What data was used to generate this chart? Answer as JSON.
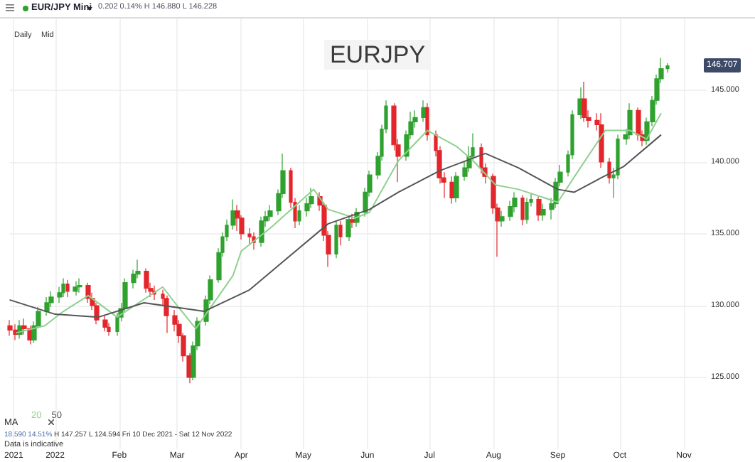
{
  "chart_data": {
    "type": "candlestick",
    "title": "EURJPY",
    "annotations": [
      "EUR/JPY Mini",
      "0.202 0.14% H 146.880 L 146.228",
      "Daily",
      "Mid",
      "18.590 14.51%",
      "H 147.257 L 124.594 Fri 10 Dec 2021 - Sat 12 Nov 2022",
      "Data is indicative",
      "146.707"
    ],
    "xlim": [
      "2021-12-10",
      "2022-11-12"
    ],
    "xticks": [
      {
        "value": "2021-12-12",
        "label": "2021"
      },
      {
        "value": "2022-01-01",
        "label": "2022"
      },
      {
        "value": "2022-02-01",
        "label": "Feb"
      },
      {
        "value": "2022-03-01",
        "label": "Mar"
      },
      {
        "value": "2022-04-01",
        "label": "Apr"
      },
      {
        "value": "2022-05-01",
        "label": "May"
      },
      {
        "value": "2022-06-01",
        "label": "Jun"
      },
      {
        "value": "2022-07-01",
        "label": "Jul"
      },
      {
        "value": "2022-08-01",
        "label": "Aug"
      },
      {
        "value": "2022-09-01",
        "label": "Sep"
      },
      {
        "value": "2022-10-01",
        "label": "Oct"
      },
      {
        "value": "2022-11-01",
        "label": "Nov"
      }
    ],
    "ylim": [
      120,
      150
    ],
    "yticks": [
      {
        "value": 125,
        "label": "125.000"
      },
      {
        "value": 130,
        "label": "130.000"
      },
      {
        "value": 135,
        "label": "135.000"
      },
      {
        "value": 140,
        "label": "140.000"
      },
      {
        "value": 145,
        "label": "145.000"
      }
    ],
    "grid": true,
    "legend": "bottom left",
    "legend_title": "MA",
    "series": [
      {
        "colors": [
          "#e3262b",
          "#e3262b",
          "#2fa12f",
          "#e3262b",
          "#e3262b",
          "#2fa12f",
          "#2fa12f",
          "#2fa12f",
          "#2fa12f",
          "#2fa12f",
          "#2fa12f",
          "#e3262b",
          "#2fa12f",
          "#2fa12f",
          "#e3262b",
          "#e3262b",
          "#e3262b",
          "#e3262b",
          "#e3262b",
          "#2fa12f",
          "#2fa12f",
          "#2fa12f",
          "#2fa12f",
          "#2fa12f",
          "#e3262b",
          "#e3262b",
          "#e3262b",
          "#e3262b",
          "#e3262b",
          "#e3262b",
          "#e3262b",
          "#e3262b",
          "#e3262b",
          "#2fa12f",
          "#2fa12f",
          "#2fa12f",
          "#2fa12f",
          "#2fa12f",
          "#2fa12f",
          "#2fa12f",
          "#2fa12f",
          "#e3262b",
          "#e3262b",
          "#e3262b",
          "#e3262b",
          "#2fa12f",
          "#2fa12f",
          "#2fa12f",
          "#2fa12f",
          "#2fa12f",
          "#e3262b",
          "#e3262b",
          "#2fa12f",
          "#2fa12f",
          "#2fa12f",
          "#e3262b",
          "#e3262b",
          "#e3262b",
          "#2fa12f",
          "#e3262b",
          "#2fa12f",
          "#e3262b",
          "#2fa12f",
          "#2fa12f",
          "#2fa12f",
          "#2fa12f",
          "#2fa12f",
          "#2fa12f",
          "#e3262b",
          "#e3262b",
          "#2fa12f",
          "#2fa12f",
          "#2fa12f",
          "#2fa12f",
          "#e3262b",
          "#e3262b",
          "#e3262b",
          "#e3262b",
          "#e3262b",
          "#2fa12f",
          "#2fa12f",
          "#2fa12f",
          "#2fa12f",
          "#e3262b",
          "#e3262b",
          "#e3262b",
          "#e3262b",
          "#2fa12f",
          "#2fa12f",
          "#2fa12f",
          "#e3262b",
          "#2fa12f",
          "#2fa12f",
          "#e3262b",
          "#2fa12f",
          "#2fa12f",
          "#2fa12f",
          "#2fa12f",
          "#2fa12f",
          "#2fa12f",
          "#2fa12f",
          "#e3262b",
          "#e3262b",
          "#e3262b",
          "#e3262b",
          "#e3262b",
          "#2fa12f",
          "#2fa12f",
          "#2fa12f",
          "#2fa12f",
          "#e3262b",
          "#e3262b",
          "#2fa12f",
          "#2fa12f",
          "#2fa12f",
          "#2fa12f",
          "#2fa12f"
        ],
        "x": [
          "2021-12-10",
          "2021-12-13",
          "2021-12-15",
          "2021-12-17",
          "2021-12-20",
          "2021-12-22",
          "2021-12-24",
          "2021-12-28",
          "2021-12-30",
          "2022-01-03",
          "2022-01-05",
          "2022-01-07",
          "2022-01-11",
          "2022-01-13",
          "2022-01-17",
          "2022-01-19",
          "2022-01-21",
          "2022-01-25",
          "2022-01-27",
          "2022-01-31",
          "2022-02-02",
          "2022-02-04",
          "2022-02-08",
          "2022-02-10",
          "2022-02-14",
          "2022-02-16",
          "2022-02-18",
          "2022-02-22",
          "2022-02-24",
          "2022-02-28",
          "2022-03-02",
          "2022-03-04",
          "2022-03-07",
          "2022-03-09",
          "2022-03-11",
          "2022-03-15",
          "2022-03-17",
          "2022-03-21",
          "2022-03-23",
          "2022-03-25",
          "2022-03-28",
          "2022-03-30",
          "2022-04-01",
          "2022-04-05",
          "2022-04-07",
          "2022-04-11",
          "2022-04-13",
          "2022-04-15",
          "2022-04-19",
          "2022-04-21",
          "2022-04-25",
          "2022-04-27",
          "2022-04-29",
          "2022-05-03",
          "2022-05-05",
          "2022-05-09",
          "2022-05-11",
          "2022-05-13",
          "2022-05-17",
          "2022-05-19",
          "2022-05-23",
          "2022-05-25",
          "2022-05-27",
          "2022-05-31",
          "2022-06-02",
          "2022-06-06",
          "2022-06-08",
          "2022-06-10",
          "2022-06-14",
          "2022-06-16",
          "2022-06-20",
          "2022-06-22",
          "2022-06-24",
          "2022-06-28",
          "2022-06-30",
          "2022-07-04",
          "2022-07-06",
          "2022-07-08",
          "2022-07-12",
          "2022-07-14",
          "2022-07-18",
          "2022-07-20",
          "2022-07-22",
          "2022-07-26",
          "2022-07-28",
          "2022-08-01",
          "2022-08-03",
          "2022-08-05",
          "2022-08-09",
          "2022-08-11",
          "2022-08-15",
          "2022-08-17",
          "2022-08-19",
          "2022-08-23",
          "2022-08-25",
          "2022-08-29",
          "2022-08-31",
          "2022-09-02",
          "2022-09-06",
          "2022-09-08",
          "2022-09-12",
          "2022-09-14",
          "2022-09-16",
          "2022-09-20",
          "2022-09-22",
          "2022-09-26",
          "2022-09-28",
          "2022-09-30",
          "2022-10-04",
          "2022-10-06",
          "2022-10-10",
          "2022-10-12",
          "2022-10-14",
          "2022-10-17",
          "2022-10-19",
          "2022-10-21",
          "2022-10-24"
        ],
        "ohlc": [
          [
            128.6,
            129.0,
            127.9,
            128.3
          ],
          [
            128.3,
            128.7,
            127.6,
            128.0
          ],
          [
            128.0,
            129.0,
            127.7,
            128.6
          ],
          [
            128.6,
            129.1,
            128.0,
            128.4
          ],
          [
            128.4,
            128.6,
            127.3,
            127.6
          ],
          [
            127.6,
            128.9,
            127.4,
            128.6
          ],
          [
            128.6,
            129.9,
            128.4,
            129.6
          ],
          [
            129.6,
            130.6,
            129.3,
            130.2
          ],
          [
            130.2,
            131.0,
            129.9,
            130.6
          ],
          [
            130.6,
            131.3,
            130.2,
            130.9
          ],
          [
            130.9,
            131.9,
            130.6,
            131.5
          ],
          [
            131.5,
            131.8,
            130.6,
            131.0
          ],
          [
            131.0,
            131.7,
            130.7,
            131.3
          ],
          [
            131.3,
            131.9,
            130.9,
            131.4
          ],
          [
            131.4,
            131.6,
            130.2,
            130.5
          ],
          [
            130.5,
            130.9,
            129.7,
            130.0
          ],
          [
            130.0,
            130.2,
            128.7,
            129.0
          ],
          [
            129.0,
            129.3,
            128.2,
            128.5
          ],
          [
            128.5,
            128.8,
            127.9,
            128.2
          ],
          [
            128.2,
            129.5,
            127.9,
            129.2
          ],
          [
            129.2,
            130.2,
            128.9,
            129.8
          ],
          [
            129.8,
            131.9,
            129.6,
            131.6
          ],
          [
            131.6,
            132.5,
            131.2,
            132.2
          ],
          [
            132.2,
            133.2,
            131.9,
            132.4
          ],
          [
            132.4,
            132.6,
            130.9,
            131.2
          ],
          [
            131.2,
            131.6,
            130.6,
            131.0
          ],
          [
            131.0,
            131.4,
            130.4,
            130.8
          ],
          [
            130.8,
            131.1,
            130.0,
            130.5
          ],
          [
            130.5,
            130.7,
            128.1,
            129.3
          ],
          [
            129.3,
            129.7,
            128.2,
            128.7
          ],
          [
            128.7,
            129.0,
            127.4,
            127.9
          ],
          [
            127.9,
            128.1,
            126.1,
            126.5
          ],
          [
            126.5,
            126.7,
            124.594,
            125.0
          ],
          [
            125.0,
            127.5,
            124.8,
            127.2
          ],
          [
            127.2,
            129.2,
            126.9,
            128.9
          ],
          [
            128.9,
            130.7,
            128.6,
            130.4
          ],
          [
            130.4,
            132.1,
            130.1,
            131.8
          ],
          [
            131.8,
            134.0,
            131.6,
            133.7
          ],
          [
            133.7,
            135.1,
            133.4,
            134.8
          ],
          [
            134.8,
            136.0,
            134.5,
            135.6
          ],
          [
            135.6,
            137.4,
            135.3,
            136.6
          ],
          [
            136.6,
            137.0,
            135.2,
            136.1
          ],
          [
            136.1,
            136.3,
            134.6,
            135.0
          ],
          [
            135.0,
            135.4,
            134.3,
            134.8
          ],
          [
            134.8,
            135.1,
            133.9,
            134.4
          ],
          [
            134.4,
            136.2,
            134.1,
            135.9
          ],
          [
            135.9,
            136.6,
            135.5,
            136.2
          ],
          [
            136.2,
            137.0,
            135.9,
            136.6
          ],
          [
            136.6,
            138.1,
            136.3,
            137.8
          ],
          [
            137.8,
            140.6,
            137.5,
            139.4
          ],
          [
            139.4,
            139.6,
            136.8,
            137.2
          ],
          [
            137.2,
            137.5,
            135.4,
            135.9
          ],
          [
            135.9,
            137.0,
            135.6,
            136.6
          ],
          [
            136.6,
            137.5,
            136.2,
            137.1
          ],
          [
            137.1,
            138.2,
            136.8,
            137.6
          ],
          [
            137.6,
            137.9,
            136.6,
            137.0
          ],
          [
            137.0,
            137.2,
            134.5,
            134.9
          ],
          [
            134.9,
            135.2,
            132.7,
            133.6
          ],
          [
            133.6,
            135.9,
            133.3,
            135.6
          ],
          [
            135.6,
            135.9,
            134.2,
            134.8
          ],
          [
            134.8,
            136.3,
            134.5,
            136.0
          ],
          [
            136.0,
            136.4,
            135.4,
            135.8
          ],
          [
            135.8,
            136.8,
            135.5,
            136.5
          ],
          [
            136.5,
            138.2,
            136.2,
            137.9
          ],
          [
            137.9,
            139.4,
            137.6,
            139.1
          ],
          [
            139.1,
            140.7,
            138.8,
            140.4
          ],
          [
            140.4,
            142.6,
            140.1,
            142.3
          ],
          [
            142.3,
            144.3,
            142.0,
            143.9
          ],
          [
            143.9,
            144.1,
            140.8,
            141.2
          ],
          [
            141.2,
            141.6,
            138.6,
            140.4
          ],
          [
            140.4,
            142.2,
            140.1,
            141.9
          ],
          [
            141.9,
            143.5,
            141.6,
            142.8
          ],
          [
            142.8,
            143.6,
            142.4,
            143.1
          ],
          [
            143.1,
            144.3,
            142.8,
            143.8
          ],
          [
            143.8,
            144.1,
            141.5,
            141.9
          ],
          [
            141.9,
            142.2,
            140.4,
            140.8
          ],
          [
            140.8,
            141.1,
            138.5,
            138.9
          ],
          [
            138.9,
            139.3,
            137.5,
            138.6
          ],
          [
            138.6,
            139.0,
            137.1,
            137.5
          ],
          [
            137.5,
            139.3,
            137.2,
            139.0
          ],
          [
            139.0,
            140.0,
            138.7,
            139.6
          ],
          [
            139.6,
            141.1,
            139.3,
            140.4
          ],
          [
            140.4,
            142.0,
            140.1,
            141.0
          ],
          [
            141.0,
            141.3,
            139.2,
            139.6
          ],
          [
            139.6,
            139.9,
            138.5,
            139.0
          ],
          [
            139.0,
            139.2,
            136.4,
            136.8
          ],
          [
            136.8,
            137.1,
            133.4,
            135.9
          ],
          [
            135.9,
            136.6,
            135.5,
            136.2
          ],
          [
            136.2,
            137.3,
            135.9,
            136.9
          ],
          [
            136.9,
            137.9,
            136.5,
            137.5
          ],
          [
            137.5,
            137.7,
            135.6,
            136.0
          ],
          [
            136.0,
            137.5,
            135.7,
            137.2
          ],
          [
            137.2,
            137.8,
            136.9,
            137.4
          ],
          [
            137.4,
            137.6,
            135.9,
            136.3
          ],
          [
            136.3,
            137.1,
            135.9,
            136.7
          ],
          [
            136.7,
            137.5,
            136.0,
            137.1
          ],
          [
            137.1,
            138.9,
            136.8,
            138.6
          ],
          [
            138.6,
            139.8,
            138.3,
            139.3
          ],
          [
            139.3,
            140.8,
            139.0,
            140.5
          ],
          [
            140.5,
            143.6,
            140.2,
            143.3
          ],
          [
            143.3,
            145.2,
            143.0,
            144.4
          ],
          [
            144.4,
            145.6,
            142.8,
            143.1
          ],
          [
            143.1,
            143.6,
            142.4,
            142.9
          ],
          [
            142.9,
            143.4,
            142.2,
            142.6
          ],
          [
            142.6,
            143.4,
            139.6,
            140.0
          ],
          [
            140.0,
            140.3,
            138.5,
            138.9
          ],
          [
            138.9,
            139.6,
            137.5,
            139.1
          ],
          [
            139.1,
            141.9,
            138.8,
            141.6
          ],
          [
            141.6,
            142.3,
            141.2,
            141.9
          ],
          [
            141.9,
            144.1,
            141.6,
            143.6
          ],
          [
            143.6,
            143.8,
            141.5,
            141.9
          ],
          [
            141.9,
            142.2,
            141.1,
            141.5
          ],
          [
            141.5,
            143.1,
            141.2,
            142.8
          ],
          [
            142.8,
            144.6,
            142.5,
            144.3
          ],
          [
            144.3,
            146.1,
            144.0,
            145.8
          ],
          [
            145.8,
            147.257,
            145.5,
            146.505
          ],
          [
            146.505,
            146.88,
            146.228,
            146.707
          ]
        ]
      },
      {
        "type": "line",
        "name": "20",
        "color": "#8fd08f",
        "x": [
          "2021-12-13",
          "2021-12-27",
          "2022-01-05",
          "2022-01-17",
          "2022-01-31",
          "2022-02-22",
          "2022-03-01",
          "2022-03-10",
          "2022-03-28",
          "2022-04-01",
          "2022-04-15",
          "2022-05-06",
          "2022-05-13",
          "2022-05-26",
          "2022-06-02",
          "2022-06-16",
          "2022-06-30",
          "2022-07-14",
          "2022-07-22",
          "2022-08-02",
          "2022-08-13",
          "2022-09-01",
          "2022-09-11",
          "2022-09-24",
          "2022-10-06",
          "2022-10-14",
          "2022-10-21"
        ],
        "values": [
          128.1,
          128.6,
          129.6,
          130.7,
          129.2,
          131.3,
          130.0,
          128.4,
          132.1,
          133.8,
          135.4,
          138.1,
          136.7,
          136.1,
          136.5,
          140.1,
          142.2,
          141.1,
          140.1,
          138.4,
          138.1,
          137.2,
          139.4,
          142.2,
          142.2,
          141.6,
          143.4
        ]
      },
      {
        "type": "line",
        "name": "50",
        "color": "#555555",
        "x": [
          "2021-12-10",
          "2022-01-01",
          "2022-01-22",
          "2022-02-13",
          "2022-03-14",
          "2022-04-05",
          "2022-04-24",
          "2022-05-13",
          "2022-06-02",
          "2022-06-16",
          "2022-07-06",
          "2022-07-28",
          "2022-08-13",
          "2022-09-01",
          "2022-09-09",
          "2022-09-22",
          "2022-10-03",
          "2022-10-21"
        ],
        "values": [
          130.4,
          129.4,
          129.2,
          130.2,
          129.6,
          131.1,
          133.4,
          135.7,
          136.7,
          137.9,
          139.4,
          140.6,
          139.6,
          138.1,
          137.9,
          138.9,
          139.7,
          141.9
        ]
      }
    ]
  }
}
